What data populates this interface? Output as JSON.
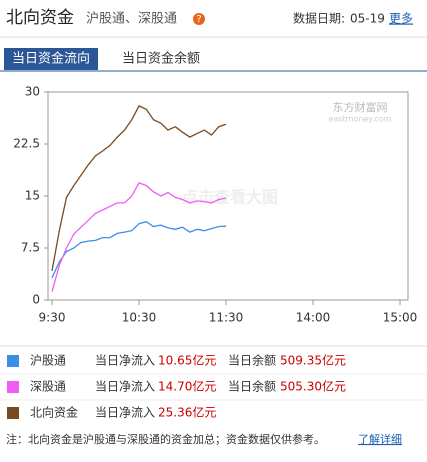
{
  "header": {
    "title": "北向资金",
    "subtitle": "沪股通、深股通",
    "help": "?",
    "date_label": "数据日期:",
    "date": "05-19",
    "more": "更多"
  },
  "tabs": [
    "当日资金流向",
    "当日资金余额"
  ],
  "watermark": {
    "brand": "东方财富网",
    "site": "eastmoney.com",
    "hint": "点击查看大图"
  },
  "chart_data": {
    "type": "line",
    "x": [
      0,
      5,
      10,
      15,
      20,
      25,
      30,
      35,
      40,
      45,
      50,
      55,
      60,
      65,
      70,
      75,
      80,
      85,
      90,
      95,
      100,
      105,
      110,
      115,
      120
    ],
    "xlim": [
      0,
      240
    ],
    "xticks": [
      {
        "value": 0,
        "label": "9:30"
      },
      {
        "value": 60,
        "label": "10:30"
      },
      {
        "value": 120,
        "label": "11:30"
      },
      {
        "value": 180,
        "label": "14:00"
      },
      {
        "value": 240,
        "label": "15:00"
      }
    ],
    "ylim": [
      0,
      30
    ],
    "yticks": [
      0,
      7.5,
      15,
      22.5,
      30
    ],
    "series": [
      {
        "name": "沪股通",
        "color": "#3c8fe8",
        "values": [
          3.2,
          5.5,
          7,
          7.5,
          8.3,
          8.5,
          8.6,
          9,
          9,
          9.6,
          9.8,
          10,
          11,
          11.3,
          10.6,
          10.8,
          10.4,
          10.2,
          10.5,
          9.8,
          10.2,
          10,
          10.3,
          10.6,
          10.65
        ]
      },
      {
        "name": "深股通",
        "color": "#f25cf2",
        "values": [
          1.2,
          5,
          7.5,
          9.5,
          10.5,
          11.5,
          12.5,
          13,
          13.5,
          14,
          14,
          15,
          16.9,
          16.5,
          15.6,
          15,
          15.5,
          14.8,
          14.5,
          14,
          14.3,
          14.2,
          14,
          14.5,
          14.7
        ]
      },
      {
        "name": "北向资金",
        "color": "#7a4a1e",
        "values": [
          4.2,
          10,
          14.8,
          16.5,
          18,
          19.5,
          20.8,
          21.5,
          22.3,
          23.5,
          24.5,
          26,
          28,
          27.5,
          26,
          25.5,
          24.5,
          25,
          24.2,
          23.5,
          24,
          24.5,
          23.8,
          25,
          25.36
        ]
      }
    ]
  },
  "legend_table": {
    "rows": [
      {
        "inflow_label": "当日净流入",
        "inflow": "10.65亿元",
        "balance_label": "当日余额",
        "balance": "509.35亿元"
      },
      {
        "inflow_label": "当日净流入",
        "inflow": "14.70亿元",
        "balance_label": "当日余额",
        "balance": "505.30亿元"
      },
      {
        "inflow_label": "当日净流入",
        "inflow": "25.36亿元",
        "balance_label": "当日余额",
        "balance": "--"
      }
    ]
  },
  "footer": {
    "note": "注：北向资金是沪股通与深股通的资金加总；资金数据仅供参考。",
    "link": "了解详细"
  }
}
